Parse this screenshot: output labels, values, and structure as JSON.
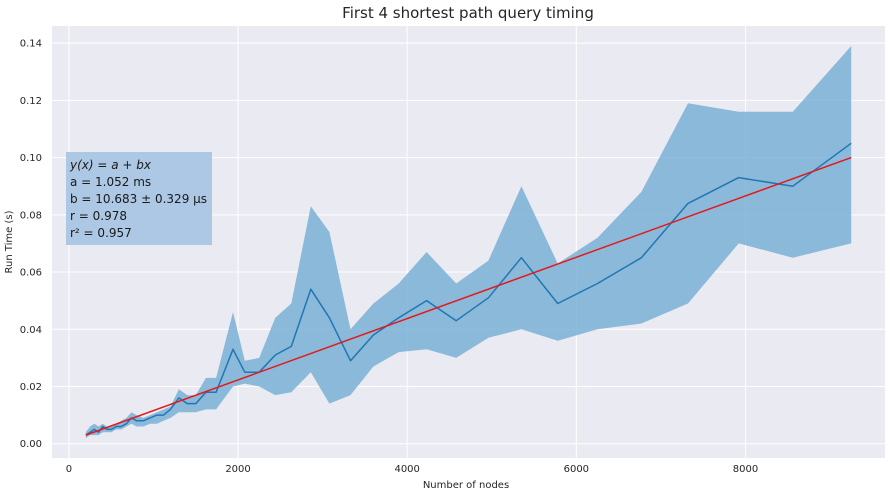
{
  "chart_data": {
    "type": "line",
    "title": "First 4 shortest path query timing",
    "xlabel": "Number of nodes",
    "ylabel": "Run Time (s)",
    "xlim": [
      -200,
      9650
    ],
    "ylim": [
      -0.005,
      0.146
    ],
    "xticks": [
      0,
      2000,
      4000,
      6000,
      8000
    ],
    "xtick_labels": [
      "0",
      "2000",
      "4000",
      "6000",
      "8000"
    ],
    "yticks": [
      0.0,
      0.02,
      0.04,
      0.06,
      0.08,
      0.1,
      0.12,
      0.14
    ],
    "ytick_labels": [
      "0.00",
      "0.02",
      "0.04",
      "0.06",
      "0.08",
      "0.10",
      "0.12",
      "0.14"
    ],
    "grid": true,
    "colors": {
      "background": "#eaeaf2",
      "grid": "#ffffff",
      "series": "#1f77b4",
      "band": "#7ab0d6",
      "fit": "#e31a1c",
      "annotation_box": "#a9c6e4"
    },
    "series": [
      {
        "x": [
          200,
          250,
          300,
          350,
          400,
          450,
          500,
          560,
          620,
          680,
          740,
          800,
          880,
          960,
          1040,
          1120,
          1200,
          1300,
          1400,
          1500,
          1620,
          1740,
          1940,
          2080,
          2250,
          2440,
          2630,
          2860,
          3080,
          3330,
          3600,
          3900,
          4230,
          4580,
          4960,
          5350,
          5780,
          6250,
          6770,
          7320,
          7920,
          8560,
          9250
        ],
        "y": [
          0.003,
          0.004,
          0.005,
          0.004,
          0.006,
          0.005,
          0.005,
          0.006,
          0.006,
          0.007,
          0.009,
          0.008,
          0.008,
          0.009,
          0.01,
          0.01,
          0.012,
          0.016,
          0.014,
          0.014,
          0.018,
          0.018,
          0.033,
          0.025,
          0.025,
          0.031,
          0.034,
          0.054,
          0.044,
          0.029,
          0.038,
          0.044,
          0.05,
          0.043,
          0.051,
          0.065,
          0.049,
          0.056,
          0.065,
          0.084,
          0.093,
          0.09,
          0.105
        ]
      },
      {
        "type": "band",
        "x": [
          200,
          250,
          300,
          350,
          400,
          450,
          500,
          560,
          620,
          680,
          740,
          800,
          880,
          960,
          1040,
          1120,
          1200,
          1300,
          1400,
          1500,
          1620,
          1740,
          1940,
          2080,
          2250,
          2440,
          2630,
          2860,
          3080,
          3330,
          3600,
          3900,
          4230,
          4580,
          4960,
          5350,
          5780,
          6250,
          6770,
          7320,
          7920,
          8560,
          9250
        ],
        "upper": [
          0.004,
          0.006,
          0.007,
          0.006,
          0.007,
          0.006,
          0.006,
          0.007,
          0.008,
          0.009,
          0.011,
          0.01,
          0.009,
          0.01,
          0.011,
          0.012,
          0.013,
          0.019,
          0.017,
          0.017,
          0.023,
          0.023,
          0.046,
          0.029,
          0.03,
          0.044,
          0.049,
          0.083,
          0.074,
          0.04,
          0.049,
          0.056,
          0.067,
          0.056,
          0.064,
          0.09,
          0.063,
          0.072,
          0.088,
          0.119,
          0.116,
          0.116,
          0.139
        ],
        "lower": [
          0.002,
          0.003,
          0.003,
          0.003,
          0.004,
          0.004,
          0.004,
          0.005,
          0.005,
          0.006,
          0.007,
          0.006,
          0.006,
          0.007,
          0.007,
          0.008,
          0.009,
          0.011,
          0.011,
          0.011,
          0.012,
          0.012,
          0.02,
          0.021,
          0.02,
          0.017,
          0.018,
          0.025,
          0.014,
          0.017,
          0.027,
          0.032,
          0.033,
          0.03,
          0.037,
          0.04,
          0.036,
          0.04,
          0.042,
          0.049,
          0.07,
          0.065,
          0.07
        ]
      },
      {
        "type": "fit",
        "x": [
          200,
          9250
        ],
        "y": [
          0.003,
          0.1
        ]
      }
    ],
    "annotation": {
      "lines": [
        {
          "text": "y(x) = a + bx",
          "italic": true
        },
        {
          "text": "a = 1.052 ms"
        },
        {
          "text": "b = 10.683 ± 0.329 μs"
        },
        {
          "text": "r = 0.978"
        },
        {
          "text": "r² = 0.957"
        }
      ]
    }
  }
}
